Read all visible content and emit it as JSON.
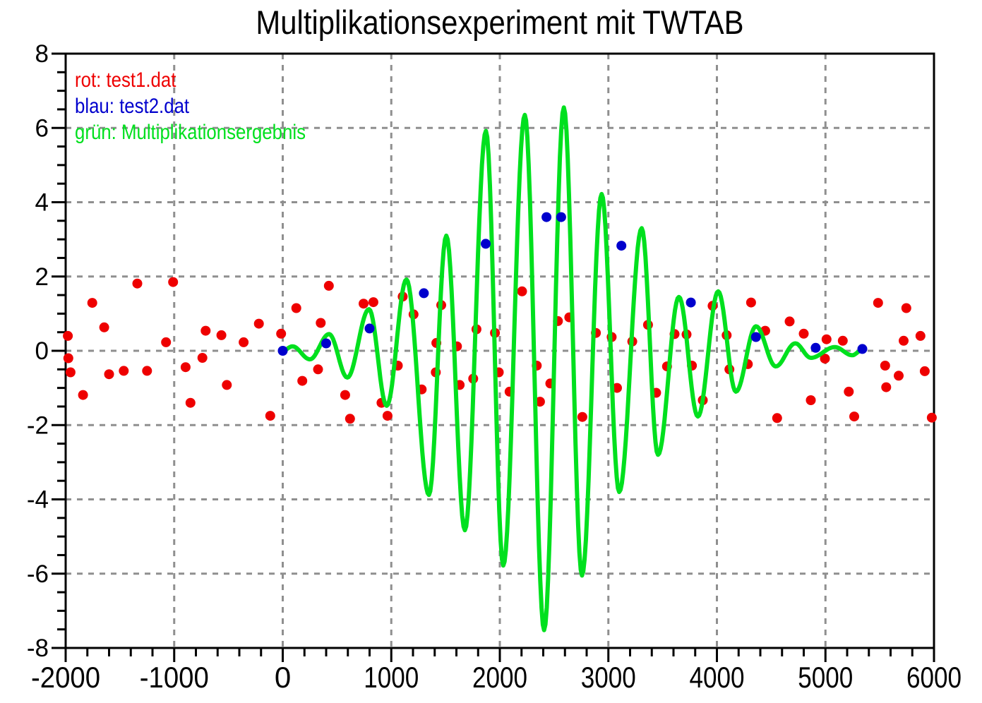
{
  "title": "Multiplikationsexperiment mit TWTAB",
  "legend": {
    "items": [
      {
        "name": "test1",
        "label": "rot: test1.dat",
        "color": "#ee0000"
      },
      {
        "name": "test2",
        "label": "blau: test2.dat",
        "color": "#0000cd"
      },
      {
        "name": "produkt",
        "label": "grün: Multiplikationsergebnis",
        "color": "#00e01e"
      }
    ]
  },
  "chart_data": {
    "type": "line+scatter",
    "title": "Multiplikationsexperiment mit TWTAB",
    "xlabel": "",
    "ylabel": "",
    "xlim": [
      -2000,
      6000
    ],
    "ylim": [
      -8,
      8
    ],
    "xticks": [
      -2000,
      -1000,
      0,
      1000,
      2000,
      3000,
      4000,
      5000,
      6000
    ],
    "yticks": [
      -8,
      -6,
      -4,
      -2,
      0,
      2,
      4,
      6,
      8
    ],
    "x_minor_step": 200,
    "y_minor_step": 0.5,
    "grid": {
      "x_lines": [
        -1000,
        0,
        1000,
        2000,
        3000,
        4000,
        5000
      ],
      "y_lines": [
        -6,
        -4,
        -2,
        0,
        2,
        4,
        6
      ],
      "color": "#8f8f8f",
      "dash": [
        8,
        8
      ],
      "width": 3
    },
    "axis_color": "#000000",
    "background": "#ffffff",
    "legend_position": "top-left-inside",
    "series": [
      {
        "name": "test1.dat",
        "legend": "rot: test1.dat",
        "type": "scatter",
        "color": "#ee0000",
        "marker_radius": 7,
        "points": [
          [
            -1980,
            0.4
          ],
          [
            -1975,
            -0.2
          ],
          [
            -1955,
            -0.58
          ],
          [
            -1840,
            -1.19
          ],
          [
            -1755,
            1.29
          ],
          [
            -1645,
            0.63
          ],
          [
            -1600,
            -0.63
          ],
          [
            -1465,
            -0.54
          ],
          [
            -1340,
            1.81
          ],
          [
            -1250,
            -0.54
          ],
          [
            -1075,
            0.23
          ],
          [
            -1010,
            1.85
          ],
          [
            -895,
            -0.44
          ],
          [
            -850,
            -1.4
          ],
          [
            -740,
            -0.19
          ],
          [
            -710,
            0.54
          ],
          [
            -565,
            0.42
          ],
          [
            -515,
            -0.92
          ],
          [
            -360,
            0.23
          ],
          [
            -220,
            0.73
          ],
          [
            -115,
            -1.75
          ],
          [
            -15,
            0.46
          ],
          [
            125,
            1.15
          ],
          [
            180,
            -0.81
          ],
          [
            325,
            -0.5
          ],
          [
            350,
            0.75
          ],
          [
            425,
            1.75
          ],
          [
            575,
            -1.19
          ],
          [
            620,
            -1.83
          ],
          [
            745,
            1.27
          ],
          [
            835,
            1.31
          ],
          [
            910,
            -1.4
          ],
          [
            965,
            -1.75
          ],
          [
            1060,
            -0.4
          ],
          [
            1105,
            1.46
          ],
          [
            1205,
            0.98
          ],
          [
            1280,
            -1.04
          ],
          [
            1410,
            -0.58
          ],
          [
            1415,
            0.21
          ],
          [
            1460,
            1.23
          ],
          [
            1605,
            0.12
          ],
          [
            1630,
            -0.92
          ],
          [
            1755,
            -0.75
          ],
          [
            1785,
            0.58
          ],
          [
            1955,
            0.48
          ],
          [
            1990,
            -0.58
          ],
          [
            2090,
            -1.1
          ],
          [
            2205,
            1.6
          ],
          [
            2340,
            -0.4
          ],
          [
            2370,
            -1.37
          ],
          [
            2465,
            -0.88
          ],
          [
            2535,
            0.8
          ],
          [
            2640,
            0.9
          ],
          [
            2760,
            -1.78
          ],
          [
            2885,
            0.48
          ],
          [
            3030,
            0.37
          ],
          [
            3080,
            -1.0
          ],
          [
            3220,
            0.25
          ],
          [
            3365,
            0.7
          ],
          [
            3440,
            -1.13
          ],
          [
            3540,
            -0.42
          ],
          [
            3610,
            0.45
          ],
          [
            3720,
            0.44
          ],
          [
            3770,
            -0.4
          ],
          [
            3870,
            -1.33
          ],
          [
            3960,
            1.21
          ],
          [
            4090,
            0.42
          ],
          [
            4115,
            -0.5
          ],
          [
            4285,
            -0.36
          ],
          [
            4315,
            1.3
          ],
          [
            4445,
            0.54
          ],
          [
            4555,
            -1.81
          ],
          [
            4670,
            0.79
          ],
          [
            4800,
            0.46
          ],
          [
            4865,
            -1.33
          ],
          [
            4995,
            -0.21
          ],
          [
            5010,
            0.31
          ],
          [
            5160,
            0.27
          ],
          [
            5215,
            -1.1
          ],
          [
            5265,
            -1.77
          ],
          [
            5485,
            1.29
          ],
          [
            5550,
            -0.4
          ],
          [
            5560,
            -0.98
          ],
          [
            5675,
            -0.67
          ],
          [
            5720,
            0.27
          ],
          [
            5745,
            1.15
          ],
          [
            5875,
            0.4
          ],
          [
            5915,
            -0.55
          ],
          [
            5980,
            -1.8
          ]
        ]
      },
      {
        "name": "test2.dat",
        "legend": "blau: test2.dat",
        "type": "scatter",
        "color": "#0000cd",
        "marker_radius": 7,
        "points": [
          [
            0,
            0.0
          ],
          [
            400,
            0.2
          ],
          [
            800,
            0.6
          ],
          [
            1300,
            1.55
          ],
          [
            1870,
            2.88
          ],
          [
            2430,
            3.6
          ],
          [
            2565,
            3.6
          ],
          [
            3120,
            2.83
          ],
          [
            3760,
            1.3
          ],
          [
            4360,
            0.37
          ],
          [
            4910,
            0.08
          ],
          [
            5340,
            0.05
          ]
        ]
      },
      {
        "name": "Multiplikationsergebnis",
        "legend": "grün: Multiplikationsergebnis",
        "type": "line",
        "color": "#00e01e",
        "line_width": 6,
        "interpolation": "cosine-through-extrema",
        "extrema": [
          [
            0,
            0.0
          ],
          [
            90,
            0.12
          ],
          [
            250,
            -0.23
          ],
          [
            427,
            0.45
          ],
          [
            595,
            -0.72
          ],
          [
            795,
            1.12
          ],
          [
            958,
            -1.48
          ],
          [
            1140,
            1.92
          ],
          [
            1347,
            -3.88
          ],
          [
            1507,
            3.1
          ],
          [
            1678,
            -4.83
          ],
          [
            1872,
            5.92
          ],
          [
            2032,
            -5.78
          ],
          [
            2230,
            6.35
          ],
          [
            2408,
            -7.52
          ],
          [
            2590,
            6.55
          ],
          [
            2757,
            -6.05
          ],
          [
            2938,
            4.22
          ],
          [
            3100,
            -3.8
          ],
          [
            3307,
            3.3
          ],
          [
            3457,
            -2.8
          ],
          [
            3650,
            1.45
          ],
          [
            3825,
            -1.77
          ],
          [
            4012,
            1.6
          ],
          [
            4175,
            -1.1
          ],
          [
            4360,
            0.66
          ],
          [
            4542,
            -0.42
          ],
          [
            4722,
            0.2
          ],
          [
            4866,
            -0.19
          ],
          [
            5086,
            0.1
          ],
          [
            5247,
            -0.12
          ],
          [
            5332,
            0.01
          ]
        ]
      }
    ]
  }
}
